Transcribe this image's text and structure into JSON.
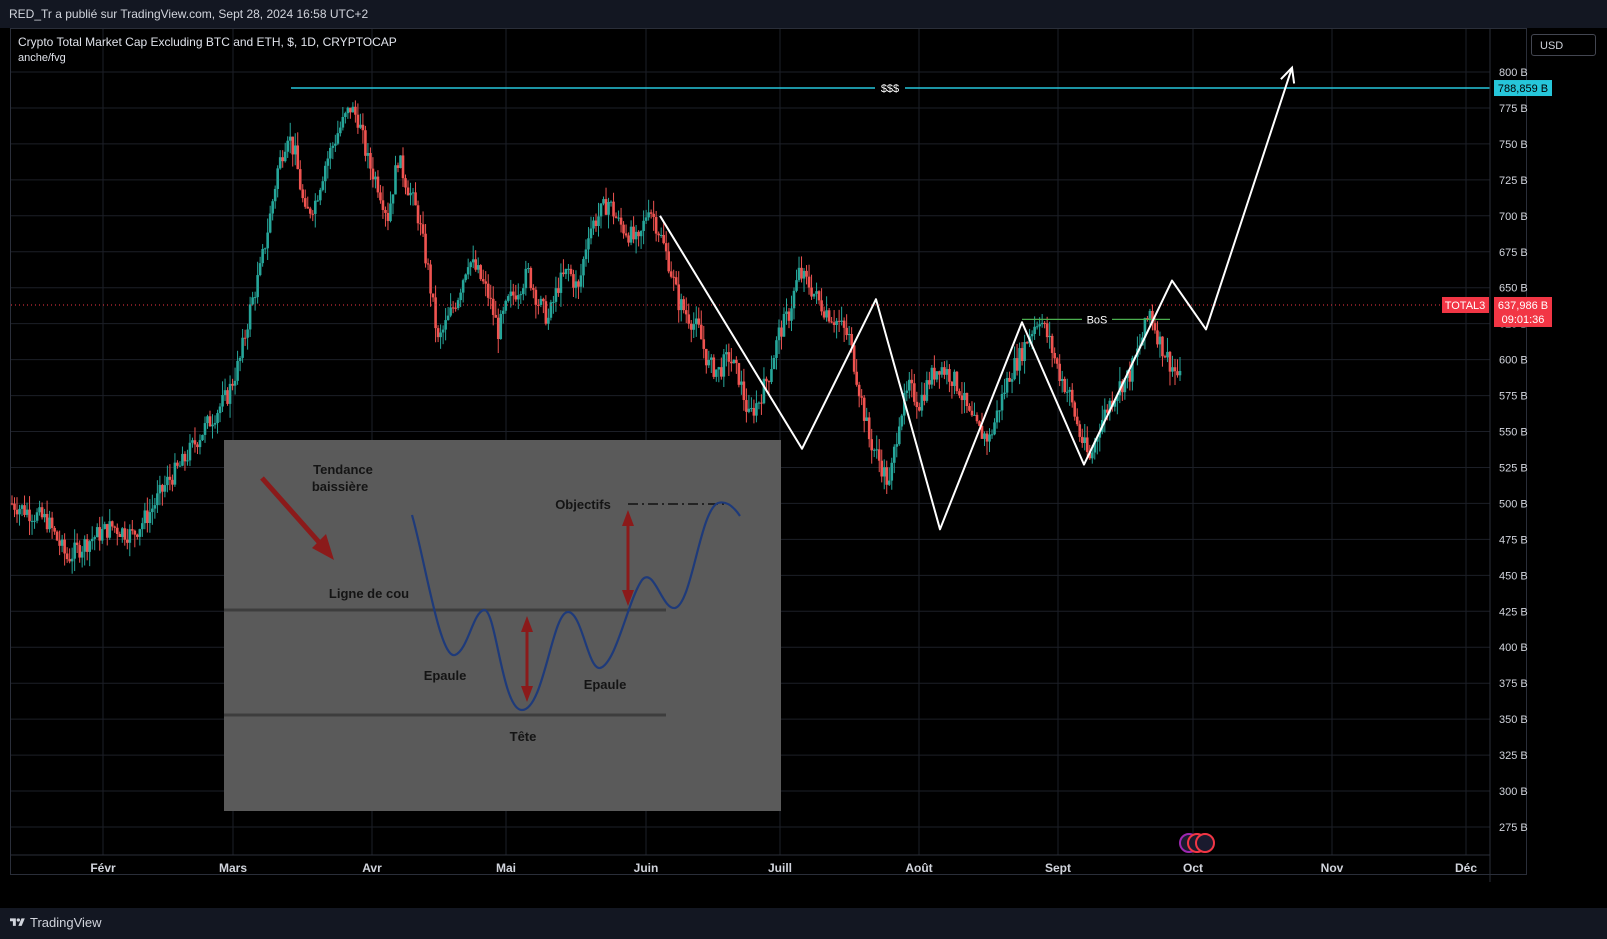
{
  "header": {
    "published_by": "RED_Tr a publié sur TradingView.com, Sept 28, 2024 16:58 UTC+2"
  },
  "legend": {
    "title": "Crypto Total Market Cap Excluding BTC and ETH, $, 1D, CRYPTOCAP",
    "indicator": "anche/fvg"
  },
  "currency_button": "USD",
  "footer": {
    "brand": "TradingView"
  },
  "colors": {
    "up": "#26a69a",
    "down": "#ef5350",
    "level": "#26c6da",
    "bos": "#4caf50",
    "price": "#f23645",
    "path": "#ffffff"
  },
  "chart_data": {
    "type": "candlestick",
    "symbol_label": "TOTAL3",
    "price_label": "637,986 B",
    "countdown": "09:01:36",
    "y_ticks": [
      "800 B",
      "775 B",
      "750 B",
      "725 B",
      "700 B",
      "675 B",
      "650 B",
      "625 B",
      "600 B",
      "575 B",
      "550 B",
      "525 B",
      "500 B",
      "475 B",
      "450 B",
      "425 B",
      "400 B",
      "375 B",
      "350 B",
      "325 B",
      "300 B",
      "275 B"
    ],
    "y_tick_values": [
      800,
      775,
      750,
      725,
      700,
      675,
      650,
      625,
      600,
      575,
      550,
      525,
      500,
      475,
      450,
      425,
      400,
      375,
      350,
      325,
      300,
      275
    ],
    "x_ticks": [
      "Févr",
      "Mars",
      "Avr",
      "Mai",
      "Juin",
      "Juill",
      "Août",
      "Sept",
      "Oct",
      "Nov",
      "Déc"
    ],
    "current_price": 637.986,
    "level_liquidity": {
      "label": "$$$",
      "value": 788.859,
      "value_label": "788,859 B"
    },
    "bos": {
      "label": "BoS",
      "value": 628
    },
    "closes_anchor": [
      [
        0,
        500
      ],
      [
        14,
        488
      ],
      [
        22,
        462
      ],
      [
        32,
        476
      ],
      [
        40,
        484
      ],
      [
        48,
        478
      ],
      [
        55,
        494
      ],
      [
        62,
        515
      ],
      [
        68,
        528
      ],
      [
        74,
        545
      ],
      [
        80,
        560
      ],
      [
        86,
        575
      ],
      [
        91,
        600
      ],
      [
        95,
        635
      ],
      [
        99,
        662
      ],
      [
        103,
        700
      ],
      [
        106,
        732
      ],
      [
        110,
        758
      ],
      [
        113,
        742
      ],
      [
        117,
        700
      ],
      [
        121,
        710
      ],
      [
        125,
        736
      ],
      [
        130,
        758
      ],
      [
        135,
        775
      ],
      [
        138,
        768
      ],
      [
        142,
        738
      ],
      [
        146,
        722
      ],
      [
        150,
        700
      ],
      [
        154,
        740
      ],
      [
        158,
        720
      ],
      [
        162,
        700
      ],
      [
        166,
        662
      ],
      [
        170,
        612
      ],
      [
        174,
        628
      ],
      [
        178,
        645
      ],
      [
        182,
        670
      ],
      [
        186,
        660
      ],
      [
        190,
        645
      ],
      [
        194,
        620
      ],
      [
        198,
        640
      ],
      [
        202,
        650
      ],
      [
        206,
        660
      ],
      [
        210,
        640
      ],
      [
        214,
        628
      ],
      [
        218,
        652
      ],
      [
        222,
        662
      ],
      [
        226,
        648
      ],
      [
        230,
        690
      ],
      [
        234,
        700
      ],
      [
        238,
        710
      ],
      [
        242,
        695
      ],
      [
        246,
        688
      ],
      [
        250,
        680
      ],
      [
        254,
        708
      ],
      [
        258,
        690
      ],
      [
        262,
        668
      ],
      [
        266,
        640
      ],
      [
        270,
        630
      ],
      [
        274,
        620
      ],
      [
        278,
        596
      ],
      [
        282,
        592
      ],
      [
        286,
        602
      ],
      [
        290,
        588
      ],
      [
        294,
        560
      ],
      [
        298,
        572
      ],
      [
        302,
        590
      ],
      [
        306,
        618
      ],
      [
        310,
        632
      ],
      [
        314,
        660
      ],
      [
        318,
        652
      ],
      [
        322,
        640
      ],
      [
        326,
        632
      ],
      [
        330,
        625
      ],
      [
        334,
        615
      ],
      [
        338,
        580
      ],
      [
        342,
        545
      ],
      [
        346,
        530
      ],
      [
        350,
        512
      ],
      [
        354,
        560
      ],
      [
        358,
        580
      ],
      [
        362,
        570
      ],
      [
        366,
        586
      ],
      [
        370,
        596
      ],
      [
        374,
        590
      ],
      [
        378,
        580
      ],
      [
        382,
        560
      ],
      [
        386,
        550
      ],
      [
        390,
        545
      ],
      [
        394,
        568
      ],
      [
        398,
        590
      ],
      [
        402,
        602
      ],
      [
        406,
        618
      ],
      [
        410,
        630
      ],
      [
        414,
        612
      ],
      [
        418,
        590
      ],
      [
        422,
        575
      ],
      [
        426,
        548
      ],
      [
        430,
        530
      ],
      [
        434,
        555
      ],
      [
        438,
        570
      ],
      [
        442,
        582
      ],
      [
        446,
        590
      ],
      [
        450,
        610
      ],
      [
        454,
        634
      ],
      [
        458,
        612
      ],
      [
        462,
        598
      ],
      [
        466,
        586
      ]
    ],
    "path_points": [
      [
        660,
        700
      ],
      [
        802,
        538
      ],
      [
        876,
        642
      ],
      [
        940,
        482
      ],
      [
        1022,
        626
      ],
      [
        1084,
        527
      ],
      [
        1172,
        655
      ],
      [
        1206,
        621
      ],
      [
        1292,
        803
      ]
    ],
    "inset": {
      "labels": {
        "trend": [
          "Tendance",
          "baissière"
        ],
        "objectives": "Objectifs",
        "neckline": "Ligne de cou",
        "left_shoulder": "Epaule",
        "right_shoulder": "Epaule",
        "head": "Tête"
      }
    }
  }
}
